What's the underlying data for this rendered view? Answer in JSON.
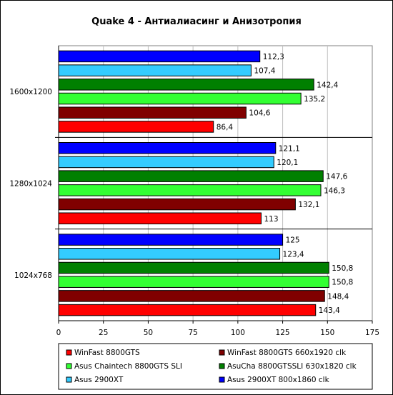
{
  "chart_data": {
    "type": "bar",
    "orientation": "horizontal",
    "title": "Quake 4 - Антиалиасинг и Анизотропия",
    "categories": [
      "1600x1200",
      "1280x1024",
      "1024x768"
    ],
    "series": [
      {
        "name": "Asus 2900XT 800x1860 clk",
        "color": "#0000ff",
        "values": [
          112.3,
          121.1,
          125
        ],
        "labels": [
          "112,3",
          "121,1",
          "125"
        ]
      },
      {
        "name": "Asus 2900XT",
        "color": "#33ccff",
        "values": [
          107.4,
          120.1,
          123.4
        ],
        "labels": [
          "107,4",
          "120,1",
          "123,4"
        ]
      },
      {
        "name": "AsuCha 8800GTSSLI 630x1820 clk",
        "color": "#008000",
        "values": [
          142.4,
          147.6,
          150.8
        ],
        "labels": [
          "142,4",
          "147,6",
          "150,8"
        ]
      },
      {
        "name": "Asus Chaintech 8800GTS SLI",
        "color": "#33ff33",
        "values": [
          135.2,
          146.3,
          150.8
        ],
        "labels": [
          "135,2",
          "146,3",
          "150,8"
        ]
      },
      {
        "name": "WinFast 8800GTS 660x1920 clk",
        "color": "#800000",
        "values": [
          104.6,
          132.1,
          148.4
        ],
        "labels": [
          "104,6",
          "132,1",
          "148,4"
        ]
      },
      {
        "name": "WinFast 8800GTS",
        "color": "#ff0000",
        "values": [
          86.4,
          113,
          143.4
        ],
        "labels": [
          "86,4",
          "113",
          "143,4"
        ]
      }
    ],
    "xlim": [
      0,
      175
    ],
    "xticks": [
      0,
      25,
      50,
      75,
      100,
      125,
      150,
      175
    ],
    "grid": true,
    "legend": {
      "placement": "bottom",
      "order": [
        "WinFast 8800GTS",
        "WinFast 8800GTS 660x1920 clk",
        "Asus Chaintech 8800GTS SLI",
        "AsuCha 8800GTSSLI 630x1820 clk",
        "Asus 2900XT",
        "Asus 2900XT 800x1860 clk"
      ]
    }
  }
}
